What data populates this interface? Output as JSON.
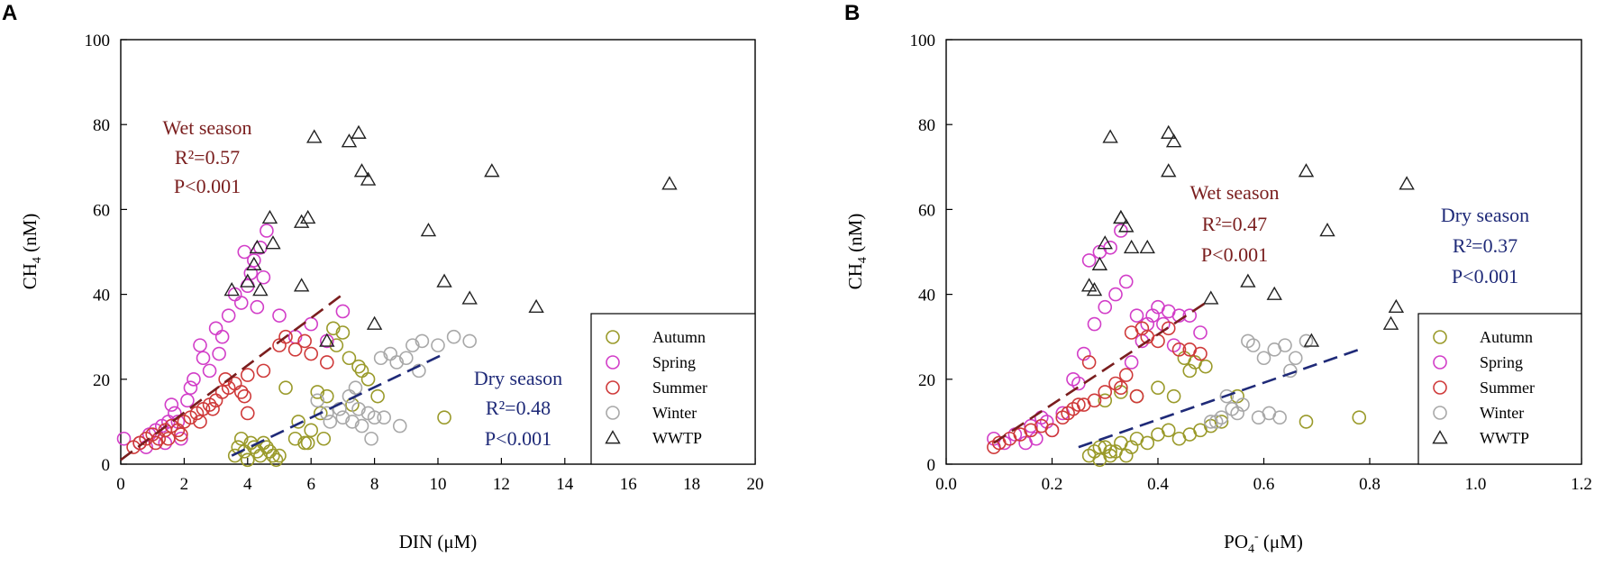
{
  "colors": {
    "Autumn": "#9a9a2a",
    "Spring": "#d23ec8",
    "Summer": "#cf3a3a",
    "Winter": "#a8a8a8",
    "WWTP": "#222222",
    "wet": "#7a1e1e",
    "dry": "#1f2a78"
  },
  "chart_data": [
    {
      "type": "scatter",
      "panel": "A",
      "xlabel": "DIN (μM)",
      "ylabel": "CH4 (nM)",
      "xlim": [
        0,
        20
      ],
      "ylim": [
        0,
        100
      ],
      "xticks": [
        "0",
        "2",
        "4",
        "6",
        "8",
        "10",
        "12",
        "14",
        "16",
        "18",
        "20"
      ],
      "yticks": [
        "0",
        "20",
        "40",
        "60",
        "80",
        "100"
      ],
      "legend_position": "bottom-right",
      "annotations": {
        "wet": {
          "title": "Wet season",
          "r2": "R²=0.57",
          "p": "P<0.001"
        },
        "dry": {
          "title": "Dry season",
          "r2": "R²=0.48",
          "p": "P<0.001"
        }
      },
      "fits": [
        {
          "season": "wet",
          "x": [
            0,
            7
          ],
          "y": [
            1,
            40
          ]
        },
        {
          "season": "dry",
          "x": [
            3.5,
            10.2
          ],
          "y": [
            2,
            26
          ]
        }
      ],
      "series": [
        {
          "name": "Autumn",
          "x": [
            3.6,
            3.9,
            4.0,
            4.2,
            4.4,
            4.5,
            4.7,
            4.9,
            5.0,
            3.8,
            4.1,
            4.3,
            4.6,
            5.5,
            5.8,
            6.0,
            6.2,
            6.5,
            6.7,
            7.0,
            7.2,
            7.5,
            7.8,
            8.1,
            5.2,
            5.6,
            6.3,
            6.8,
            7.3,
            4.0,
            4.8,
            3.7,
            5.9,
            6.4,
            10.2,
            7.6
          ],
          "y": [
            2,
            3,
            1,
            4,
            2,
            5,
            3,
            1,
            2,
            6,
            5,
            3,
            4,
            6,
            5,
            8,
            17,
            16,
            32,
            31,
            25,
            23,
            20,
            16,
            18,
            10,
            12,
            28,
            14,
            1,
            2,
            4,
            5,
            6,
            11,
            22
          ]
        },
        {
          "name": "Spring",
          "x": [
            0.1,
            0.6,
            0.9,
            1.1,
            1.3,
            1.5,
            1.7,
            1.9,
            2.1,
            2.3,
            2.6,
            2.8,
            3.0,
            3.2,
            3.4,
            3.6,
            3.8,
            4.0,
            4.2,
            4.4,
            4.6,
            5.0,
            5.5,
            6.0,
            6.5,
            7.0,
            0.8,
            1.4,
            1.8,
            2.2,
            3.9,
            4.1,
            4.3,
            4.5,
            2.5,
            3.1,
            1.6
          ],
          "y": [
            6,
            5,
            7,
            8,
            9,
            10,
            12,
            6,
            15,
            20,
            25,
            22,
            32,
            30,
            35,
            40,
            38,
            42,
            48,
            51,
            55,
            35,
            30,
            33,
            29,
            36,
            4,
            5,
            10,
            18,
            50,
            45,
            37,
            44,
            28,
            26,
            14
          ]
        },
        {
          "name": "Summer",
          "x": [
            0.4,
            0.6,
            0.8,
            1.0,
            1.2,
            1.4,
            1.6,
            1.8,
            2.0,
            2.2,
            2.4,
            2.6,
            2.8,
            3.0,
            3.2,
            3.4,
            3.6,
            3.8,
            4.0,
            4.5,
            5.0,
            5.5,
            6.0,
            6.5,
            1.1,
            1.5,
            1.9,
            2.5,
            3.3,
            3.9,
            5.2,
            5.8,
            4.0,
            2.9
          ],
          "y": [
            4,
            5,
            6,
            7,
            6,
            8,
            9,
            8,
            10,
            11,
            12,
            13,
            14,
            15,
            17,
            18,
            19,
            17,
            21,
            22,
            28,
            27,
            26,
            24,
            5,
            6,
            7,
            10,
            20,
            16,
            30,
            29,
            12,
            13
          ]
        },
        {
          "name": "Winter",
          "x": [
            7.0,
            7.3,
            7.5,
            7.6,
            7.8,
            8.0,
            8.2,
            8.5,
            8.7,
            9.0,
            9.2,
            9.5,
            10.0,
            10.5,
            11.0,
            6.6,
            6.9,
            7.2,
            7.9,
            8.3,
            8.8,
            9.4,
            6.2,
            6.5,
            7.4
          ],
          "y": [
            11,
            10,
            13,
            9,
            12,
            11,
            25,
            26,
            24,
            25,
            28,
            29,
            28,
            30,
            29,
            10,
            13,
            16,
            6,
            11,
            9,
            22,
            15,
            12,
            18
          ]
        },
        {
          "name": "WWTP",
          "x": [
            3.5,
            4.0,
            4.2,
            4.3,
            4.4,
            4.7,
            4.8,
            5.7,
            5.9,
            6.1,
            6.5,
            7.2,
            7.5,
            7.6,
            7.8,
            8.0,
            9.7,
            10.2,
            11.0,
            11.7,
            13.1,
            17.3,
            5.7
          ],
          "y": [
            41,
            43,
            47,
            51,
            41,
            58,
            52,
            57,
            58,
            77,
            29,
            76,
            78,
            69,
            67,
            33,
            55,
            43,
            39,
            69,
            37,
            66,
            42
          ]
        }
      ]
    },
    {
      "type": "scatter",
      "panel": "B",
      "xlabel": "PO4⁻ (μM)",
      "ylabel": "CH4 (nM)",
      "xlim": [
        0,
        1.2
      ],
      "ylim": [
        0,
        100
      ],
      "xticks": [
        "0.0",
        "0.2",
        "0.4",
        "0.6",
        "0.8",
        "1.0",
        "1.2"
      ],
      "yticks": [
        "0",
        "20",
        "40",
        "60",
        "80",
        "100"
      ],
      "legend_position": "bottom-right",
      "annotations": {
        "wet": {
          "title": "Wet season",
          "r2": "R²=0.47",
          "p": "P<0.001"
        },
        "dry": {
          "title": "Dry season",
          "r2": "R²=0.37",
          "p": "P<0.001"
        }
      },
      "fits": [
        {
          "season": "wet",
          "x": [
            0.09,
            0.49
          ],
          "y": [
            5,
            38
          ]
        },
        {
          "season": "dry",
          "x": [
            0.25,
            0.78
          ],
          "y": [
            4,
            27
          ]
        }
      ],
      "series": [
        {
          "name": "Autumn",
          "x": [
            0.27,
            0.28,
            0.29,
            0.3,
            0.31,
            0.32,
            0.33,
            0.34,
            0.35,
            0.36,
            0.38,
            0.4,
            0.42,
            0.44,
            0.46,
            0.48,
            0.5,
            0.52,
            0.55,
            0.45,
            0.47,
            0.3,
            0.33,
            0.36,
            0.4,
            0.43,
            0.46,
            0.49,
            0.68,
            0.78,
            0.29,
            0.31
          ],
          "y": [
            2,
            3,
            1,
            4,
            2,
            3,
            5,
            2,
            4,
            6,
            5,
            7,
            8,
            6,
            7,
            8,
            9,
            10,
            16,
            25,
            24,
            15,
            17,
            16,
            18,
            16,
            22,
            23,
            10,
            11,
            4,
            3
          ]
        },
        {
          "name": "Spring",
          "x": [
            0.09,
            0.11,
            0.13,
            0.15,
            0.17,
            0.19,
            0.2,
            0.22,
            0.24,
            0.26,
            0.28,
            0.3,
            0.32,
            0.34,
            0.36,
            0.38,
            0.4,
            0.42,
            0.44,
            0.46,
            0.48,
            0.27,
            0.29,
            0.31,
            0.33,
            0.25,
            0.35,
            0.37,
            0.39,
            0.41,
            0.43,
            0.16,
            0.18
          ],
          "y": [
            6,
            5,
            7,
            5,
            6,
            10,
            8,
            12,
            20,
            26,
            33,
            37,
            40,
            43,
            35,
            33,
            37,
            36,
            35,
            35,
            31,
            48,
            50,
            51,
            55,
            19,
            24,
            29,
            35,
            33,
            28,
            9,
            11
          ]
        },
        {
          "name": "Summer",
          "x": [
            0.09,
            0.1,
            0.12,
            0.14,
            0.16,
            0.18,
            0.2,
            0.22,
            0.24,
            0.26,
            0.28,
            0.3,
            0.32,
            0.34,
            0.36,
            0.38,
            0.4,
            0.42,
            0.44,
            0.46,
            0.48,
            0.23,
            0.25,
            0.27,
            0.35,
            0.37,
            0.33
          ],
          "y": [
            4,
            5,
            6,
            7,
            8,
            9,
            8,
            11,
            13,
            14,
            15,
            17,
            19,
            21,
            16,
            30,
            29,
            32,
            27,
            27,
            26,
            12,
            14,
            24,
            31,
            32,
            18
          ]
        },
        {
          "name": "Winter",
          "x": [
            0.5,
            0.52,
            0.54,
            0.55,
            0.56,
            0.57,
            0.58,
            0.6,
            0.62,
            0.64,
            0.65,
            0.66,
            0.68,
            0.51,
            0.53,
            0.59,
            0.61,
            0.63
          ],
          "y": [
            10,
            11,
            13,
            12,
            14,
            29,
            28,
            25,
            27,
            28,
            22,
            25,
            29,
            10,
            16,
            11,
            12,
            11
          ],
          "note": ""
        },
        {
          "name": "WWTP",
          "x": [
            0.27,
            0.28,
            0.29,
            0.3,
            0.31,
            0.33,
            0.34,
            0.35,
            0.38,
            0.42,
            0.43,
            0.5,
            0.57,
            0.62,
            0.68,
            0.69,
            0.72,
            0.84,
            0.85,
            0.87,
            0.42,
            0.33
          ],
          "y": [
            42,
            41,
            47,
            52,
            77,
            58,
            56,
            51,
            51,
            78,
            76,
            39,
            43,
            40,
            69,
            29,
            55,
            33,
            37,
            66,
            69,
            58
          ]
        }
      ]
    }
  ],
  "panels": [
    {
      "letter": "A",
      "legend": [
        "Autumn",
        "Spring",
        "Summer",
        "Winter",
        "WWTP"
      ]
    },
    {
      "letter": "B",
      "legend": [
        "Autumn",
        "Spring",
        "Summer",
        "Winter",
        "WWTP"
      ]
    }
  ]
}
